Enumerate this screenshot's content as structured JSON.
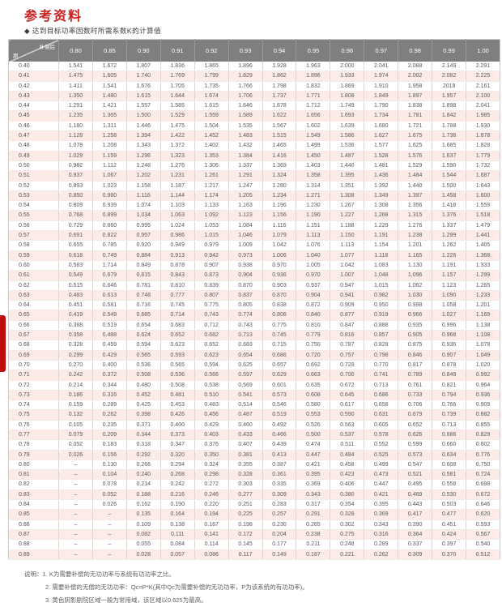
{
  "page": {
    "title": "参考资料",
    "subtitle": "◆ 达到目标功率因数时所需系数K的计算值"
  },
  "colors": {
    "title_red": "#cc2020",
    "header_gray": "#7f7f7f",
    "stripe_pink": "#fcebe7",
    "side_tab_red": "#c00d0d",
    "cell_text": "#5a5a5a"
  },
  "table": {
    "corner": {
      "top_right": "补偿后",
      "bottom_left": "原"
    },
    "columns": [
      "0.80",
      "0.85",
      "0.90",
      "0.91",
      "0.92",
      "0.93",
      "0.94",
      "0.95",
      "0.96",
      "0.97",
      "0.98",
      "0.99",
      "1.00"
    ],
    "rows": [
      {
        "label": "0.40",
        "values": [
          "1.541",
          "1.672",
          "1.807",
          "1.836",
          "1.865",
          "1.896",
          "1.928",
          "1.963",
          "2.000",
          "2.041",
          "2.088",
          "2.149",
          "2.291"
        ]
      },
      {
        "label": "0.41",
        "values": [
          "1.475",
          "1.605",
          "1.740",
          "1.769",
          "1.799",
          "1.829",
          "1.862",
          "1.896",
          "1.933",
          "1.974",
          "2.002",
          "2.082",
          "2.225"
        ]
      },
      {
        "label": "0.42",
        "values": [
          "1.411",
          "1.541",
          "1.676",
          "1.705",
          "1.735",
          "1.766",
          "1.798",
          "1.832",
          "1.869",
          "1.910",
          "1.958",
          "2018",
          "2.161"
        ]
      },
      {
        "label": "0.43",
        "values": [
          "1.350",
          "1.480",
          "1.615",
          "1.644",
          "1.674",
          "1.706",
          "1.737",
          "1.771",
          "1.808",
          "1.849",
          "1.897",
          "1.957",
          "2.100"
        ]
      },
      {
        "label": "0.44",
        "values": [
          "1.291",
          "1.421",
          "1.557",
          "1.585",
          "1.615",
          "1.646",
          "1.678",
          "1.712",
          "1.749",
          "1.790",
          "1.838",
          "1.898",
          "2.041"
        ]
      },
      {
        "label": "0.45",
        "values": [
          "1.235",
          "1.365",
          "1.500",
          "1.529",
          "1.559",
          "1.589",
          "1.622",
          "1.656",
          "1.693",
          "1.734",
          "1.781",
          "1.842",
          "1.985"
        ]
      },
      {
        "label": "0.46",
        "values": [
          "1.180",
          "1.311",
          "1.446",
          "1.475",
          "1.504",
          "1.535",
          "1.567",
          "1.602",
          "1.639",
          "1.680",
          "1.721",
          "1.788",
          "1.930"
        ]
      },
      {
        "label": "0.47",
        "values": [
          "1.128",
          "1.258",
          "1.394",
          "1.422",
          "1.452",
          "1.483",
          "1.515",
          "1.549",
          "1.586",
          "1.627",
          "1.675",
          "1.736",
          "1.878"
        ]
      },
      {
        "label": "0.48",
        "values": [
          "1.078",
          "1.208",
          "1.343",
          "1.372",
          "1.402",
          "1.432",
          "1.465",
          "1.499",
          "1.536",
          "1.577",
          "1.625",
          "1.685",
          "1.828"
        ]
      },
      {
        "label": "0.49",
        "values": [
          "1.029",
          "1.159",
          "1.296",
          "1.323",
          "1.353",
          "1.384",
          "1.416",
          "1.450",
          "1.487",
          "1.528",
          "1.576",
          "1.637",
          "1.779"
        ]
      },
      {
        "label": "0.50",
        "values": [
          "0.982",
          "1.112",
          "1.248",
          "1.276",
          "1.306",
          "1.337",
          "1.369",
          "1.403",
          "1.440",
          "1.481",
          "1.529",
          "1.590",
          "1.732"
        ]
      },
      {
        "label": "0.51",
        "values": [
          "0.937",
          "1.067",
          "1.202",
          "1.231",
          "1.261",
          "1.291",
          "1.324",
          "1.358",
          "1.395",
          "1.436",
          "1.484",
          "1.544",
          "1.687"
        ]
      },
      {
        "label": "0.52",
        "values": [
          "0.893",
          "1.023",
          "1.158",
          "1.187",
          "1.217",
          "1.247",
          "1.280",
          "1.314",
          "1.351",
          "1.392",
          "1.440",
          "1.500",
          "1.643"
        ]
      },
      {
        "label": "0.53",
        "values": [
          "0.850",
          "0.980",
          "1.116",
          "1.144",
          "1.174",
          "1.205",
          "1.234",
          "1.271",
          "1.308",
          "1.349",
          "1.397",
          "1.458",
          "1.600"
        ]
      },
      {
        "label": "0.54",
        "values": [
          "0.809",
          "0.939",
          "1.074",
          "1.103",
          "1.133",
          "1.163",
          "1.196",
          "1.230",
          "1.267",
          "1.308",
          "1.356",
          "1.416",
          "1.559"
        ]
      },
      {
        "label": "0.55",
        "values": [
          "0.768",
          "0.899",
          "1.034",
          "1.063",
          "1.092",
          "1.123",
          "1.156",
          "1.190",
          "1.227",
          "1.268",
          "1.315",
          "1.376",
          "1.518"
        ]
      },
      {
        "label": "0.56",
        "values": [
          "0.729",
          "0.860",
          "0.995",
          "1.024",
          "1.053",
          "1.084",
          "1.116",
          "1.151",
          "1.188",
          "1.229",
          "1.276",
          "1.337",
          "1.479"
        ]
      },
      {
        "label": "0.57",
        "values": [
          "0.691",
          "0.822",
          "0.957",
          "0.986",
          "1.015",
          "1.046",
          "1.079",
          "1.113",
          "1.150",
          "1.191",
          "1.238",
          "1.299",
          "1.441"
        ]
      },
      {
        "label": "0.58",
        "values": [
          "0.655",
          "0.785",
          "0.920",
          "0.949",
          "0.979",
          "1.009",
          "1.042",
          "1.076",
          "1.113",
          "1.154",
          "1.201",
          "1.262",
          "1.405"
        ]
      },
      {
        "label": "0.59",
        "values": [
          "0.618",
          "0.749",
          "0.884",
          "0.913",
          "0.942",
          "0.973",
          "1.006",
          "1.040",
          "1.077",
          "1.118",
          "1.165",
          "1.226",
          "1.368"
        ]
      },
      {
        "label": "0.60",
        "values": [
          "0.583",
          "1.714",
          "0.849",
          "0.878",
          "0.907",
          "0.938",
          "0.970",
          "1.005",
          "1.042",
          "1.083",
          "1.130",
          "1.191",
          "1.333"
        ]
      },
      {
        "label": "0.61",
        "values": [
          "0.549",
          "0.679",
          "0.815",
          "0.843",
          "0.873",
          "0.904",
          "0.936",
          "0.970",
          "1.007",
          "1.048",
          "1.096",
          "1.157",
          "1.299"
        ]
      },
      {
        "label": "0.62",
        "values": [
          "0.515",
          "0.646",
          "0.781",
          "0.810",
          "0.839",
          "0.870",
          "0.903",
          "0.937",
          "0.947",
          "1.015",
          "1.062",
          "1.123",
          "1.265"
        ]
      },
      {
        "label": "0.63",
        "values": [
          "0.483",
          "0.613",
          "0.748",
          "0.777",
          "0.807",
          "0.837",
          "0.870",
          "0.904",
          "0.941",
          "0.982",
          "1.030",
          "1.090",
          "1.233"
        ]
      },
      {
        "label": "0.64",
        "values": [
          "0.451",
          "0.581",
          "0.716",
          "0.745",
          "0.775",
          "0.805",
          "0.838",
          "0.872",
          "0.909",
          "0.950",
          "0.998",
          "1.058",
          "1.201"
        ]
      },
      {
        "label": "0.65",
        "values": [
          "0.419",
          "0.549",
          "0.685",
          "0.714",
          "0.743",
          "0.774",
          "0.806",
          "0.840",
          "0.877",
          "0.919",
          "0.966",
          "1.027",
          "1.169"
        ]
      },
      {
        "label": "0.66",
        "values": [
          "0.388",
          "0.519",
          "0.654",
          "0.683",
          "0.712",
          "0.743",
          "0.775",
          "0.810",
          "0.847",
          "0.888",
          "0.935",
          "0.996",
          "1.138"
        ]
      },
      {
        "label": "0.67",
        "values": [
          "0.358",
          "0.488",
          "0.624",
          "0.652",
          "0.682",
          "0.713",
          "0.745",
          "0.779",
          "0.816",
          "0.857",
          "0.905",
          "0.966",
          "1.108"
        ]
      },
      {
        "label": "0.68",
        "values": [
          "0.328",
          "0.459",
          "0.594",
          "0.623",
          "0.652",
          "0.683",
          "0.715",
          "0.750",
          "0.787",
          "0.828",
          "0.875",
          "0.936",
          "1.078"
        ]
      },
      {
        "label": "0.69",
        "values": [
          "0.299",
          "0.429",
          "0.565",
          "0.593",
          "0.623",
          "0.654",
          "0.686",
          "0.720",
          "0.757",
          "0.798",
          "0.846",
          "0.907",
          "1.049"
        ]
      },
      {
        "label": "0.70",
        "values": [
          "0.270",
          "0.400",
          "0.536",
          "0.565",
          "0.594",
          "0.625",
          "0.657",
          "0.692",
          "0.729",
          "0.770",
          "0.817",
          "0.878",
          "1.020"
        ]
      },
      {
        "label": "0.71",
        "values": [
          "0.242",
          "0.372",
          "0.508",
          "0.536",
          "0.566",
          "0.597",
          "0.629",
          "0.663",
          "0.700",
          "0.741",
          "0.789",
          "0.849",
          "0.992"
        ]
      },
      {
        "label": "0.72",
        "values": [
          "0.214",
          "0.344",
          "0.480",
          "0.508",
          "0.538",
          "0.569",
          "0.601",
          "0.635",
          "0.672",
          "0.713",
          "0.761",
          "0.821",
          "0.964"
        ]
      },
      {
        "label": "0.73",
        "values": [
          "0.186",
          "0.316",
          "0.452",
          "0.481",
          "0.510",
          "0.541",
          "0.573",
          "0.608",
          "0.645",
          "0.686",
          "0.733",
          "0.794",
          "0.936"
        ]
      },
      {
        "label": "0.74",
        "values": [
          "0.159",
          "0.289",
          "0.425",
          "0.453",
          "0.483",
          "0.514",
          "0.546",
          "0.580",
          "0.617",
          "0.658",
          "0.706",
          "0.766",
          "0.909"
        ]
      },
      {
        "label": "0.75",
        "values": [
          "0.132",
          "0.262",
          "0.398",
          "0.426",
          "0.456",
          "0.487",
          "0.519",
          "0.553",
          "0.590",
          "0.631",
          "0.679",
          "0.739",
          "0.882"
        ]
      },
      {
        "label": "0.76",
        "values": [
          "0.105",
          "0.235",
          "0.371",
          "0.400",
          "0.429",
          "0.460",
          "0.492",
          "0.526",
          "0.563",
          "0.605",
          "0.652",
          "0.713",
          "0.855"
        ]
      },
      {
        "label": "0.77",
        "values": [
          "0.079",
          "0.209",
          "0.344",
          "0.373",
          "0.403",
          "0.433",
          "0.466",
          "0.500",
          "0.537",
          "0.578",
          "0.626",
          "0.686",
          "0.829"
        ]
      },
      {
        "label": "0.78",
        "values": [
          "0.052",
          "0.183",
          "0.318",
          "0.347",
          "0.376",
          "0.407",
          "0.439",
          "0.474",
          "0.511",
          "0.552",
          "0.599",
          "0.660",
          "0.802"
        ]
      },
      {
        "label": "0.79",
        "values": [
          "0.026",
          "0.156",
          "0.292",
          "0.320",
          "0.350",
          "0.381",
          "0.413",
          "0.447",
          "0.484",
          "0.525",
          "0.573",
          "0.634",
          "0.776"
        ]
      },
      {
        "label": "0.80",
        "values": [
          "–",
          "0.130",
          "0.266",
          "0.294",
          "0.324",
          "0.355",
          "0.387",
          "0.421",
          "0.458",
          "0.499",
          "0.547",
          "0.608",
          "0.750"
        ]
      },
      {
        "label": "0.81",
        "values": [
          "–",
          "0.104",
          "0.240",
          "0.268",
          "0.298",
          "0.328",
          "0.361",
          "0.395",
          "0.423",
          "0.473",
          "0.521",
          "0.581",
          "0.724"
        ]
      },
      {
        "label": "0.82",
        "values": [
          "–",
          "0.078",
          "0.214",
          "0.242",
          "0.272",
          "0.303",
          "0.335",
          "0.369",
          "0.406",
          "0.447",
          "0.495",
          "0.556",
          "0.698"
        ]
      },
      {
        "label": "0.83",
        "values": [
          "–",
          "0.052",
          "0.188",
          "0.216",
          "0.246",
          "0.277",
          "0.309",
          "0.343",
          "0.380",
          "0.421",
          "0.469",
          "0.530",
          "0.672"
        ]
      },
      {
        "label": "0.84",
        "values": [
          "–",
          "0.026",
          "0.162",
          "0.190",
          "0.220",
          "0.251",
          "0.283",
          "0.317",
          "0.354",
          "0.395",
          "0.443",
          "0.503",
          "0.646"
        ]
      },
      {
        "label": "0.85",
        "values": [
          "–",
          "–",
          "0.135",
          "0.164",
          "0.194",
          "0.225",
          "0.257",
          "0.291",
          "0.328",
          "0.369",
          "0.417",
          "0.477",
          "0.620"
        ]
      },
      {
        "label": "0.86",
        "values": [
          "–",
          "–",
          "0.109",
          "0.138",
          "0.167",
          "0.198",
          "0.230",
          "0.265",
          "0.302",
          "0.343",
          "0.390",
          "0.451",
          "0.593"
        ]
      },
      {
        "label": "0.87",
        "values": [
          "–",
          "–",
          "0.082",
          "0.111",
          "0.141",
          "0.172",
          "0.204",
          "0.238",
          "0.275",
          "0.316",
          "0.364",
          "0.424",
          "0.567"
        ]
      },
      {
        "label": "0.88",
        "values": [
          "–",
          "–",
          "0.055",
          "0.084",
          "0.114",
          "0.145",
          "0.177",
          "0.211",
          "0.248",
          "0.289",
          "0.337",
          "0.397",
          "0.540"
        ]
      },
      {
        "label": "0.89",
        "values": [
          "–",
          "–",
          "0.028",
          "0.057",
          "0.086",
          "0.117",
          "0.149",
          "0.187",
          "0.221",
          "0.262",
          "0.309",
          "0.370",
          "0.512"
        ]
      }
    ]
  },
  "notes": {
    "prefix": "说明：",
    "items": [
      "1. K为需要补偿的无功功率与系统有功功率之比。",
      "2. 需要补偿的无偿的无功功率：Qc=P*K(其中Qc为需要补偿的无功功率，P为该系统的有功功率)。",
      "3. 黄色阴影剧院区域一般为常用域，该区域以0.625为最高。"
    ]
  }
}
